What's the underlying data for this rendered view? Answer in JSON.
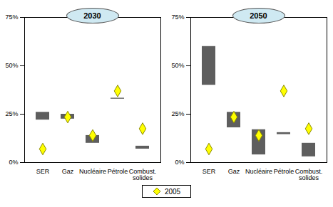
{
  "chart_data": [
    {
      "type": "range_bar",
      "title": "2030",
      "categories": [
        "SER",
        "Gaz",
        "Nucléaire",
        "Pétrole",
        "Combust. solides"
      ],
      "ranges": {
        "low": [
          22,
          22.5,
          10,
          32.8,
          7
        ],
        "high": [
          26,
          25,
          14,
          33.3,
          8.5
        ],
        "color": "#5e5e5e"
      },
      "series": [
        {
          "name": "2005",
          "type": "scatter",
          "marker": "diamond",
          "color": "#ffff00",
          "values": [
            7,
            23.5,
            14,
            37,
            17.5
          ]
        }
      ],
      "ylim": [
        0,
        75
      ],
      "yticks": [
        {
          "value": 0,
          "label": "0%"
        },
        {
          "value": 25,
          "label": "25%"
        },
        {
          "value": 50,
          "label": "50%"
        },
        {
          "value": 75,
          "label": "75%"
        }
      ],
      "grid": false,
      "legend": "bottom"
    },
    {
      "type": "range_bar",
      "title": "2050",
      "categories": [
        "SER",
        "Gaz",
        "Nucléaire",
        "Pétrole",
        "Combust. solides"
      ],
      "ranges": {
        "low": [
          40,
          18,
          4,
          14.5,
          3
        ],
        "high": [
          60,
          26,
          17,
          15.5,
          10
        ],
        "color": "#5e5e5e"
      },
      "series": [
        {
          "name": "2005",
          "type": "scatter",
          "marker": "diamond",
          "color": "#ffff00",
          "values": [
            7,
            23.5,
            14,
            37,
            17.5
          ]
        }
      ],
      "ylim": [
        0,
        75
      ],
      "yticks": [
        {
          "value": 0,
          "label": "0%"
        },
        {
          "value": 25,
          "label": "25%"
        },
        {
          "value": 50,
          "label": "50%"
        },
        {
          "value": 75,
          "label": "75%"
        }
      ],
      "grid": false,
      "legend": "bottom"
    }
  ]
}
